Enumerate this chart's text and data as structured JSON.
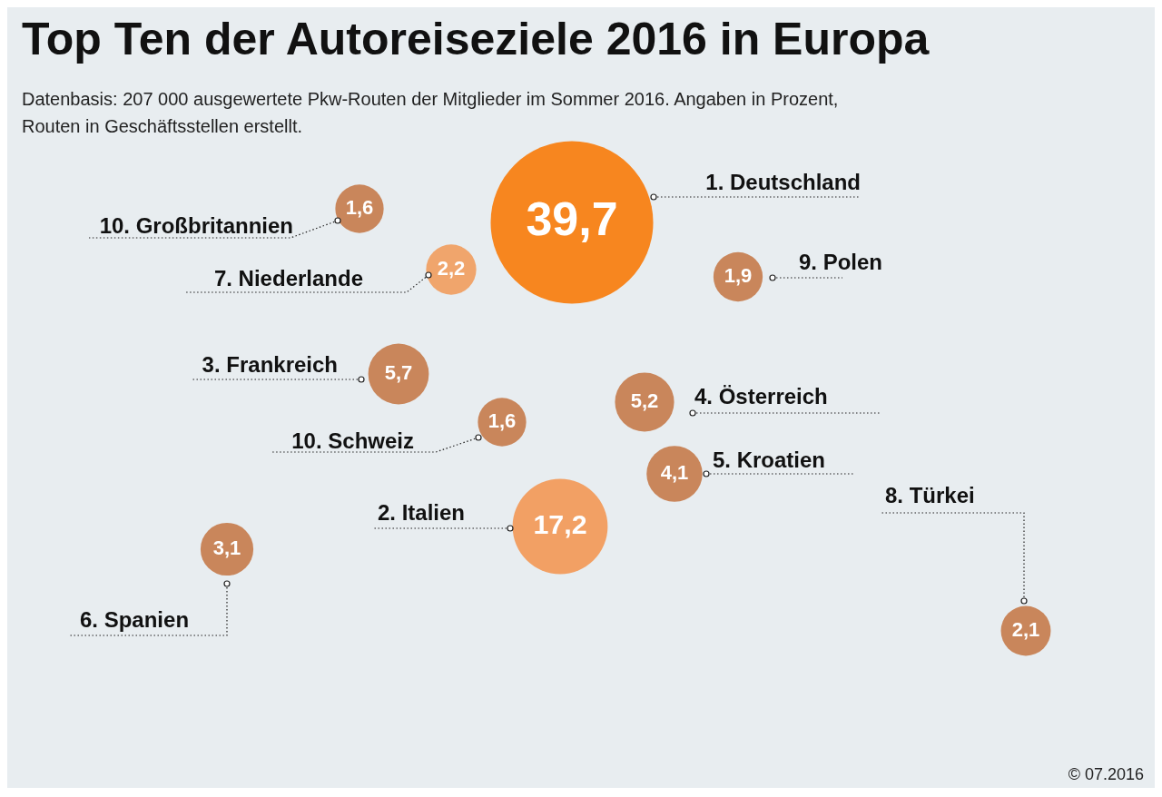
{
  "chart_data": {
    "type": "other",
    "title": "Top Ten der Autoreiseziele 2016 in Europa",
    "subtitle": "Datenbasis: 207 000 ausgewertete Pkw-Routen der Mitglieder im Sommer 2016. Angaben in Prozent, Routen in Geschäftsstellen erstellt.",
    "categories": [
      "1. Deutschland",
      "2. Italien",
      "3. Frankreich",
      "4. Österreich",
      "5. Kroatien",
      "6. Spanien",
      "7. Niederlande",
      "8. Türkei",
      "9. Polen",
      "10. Großbritannien",
      "10. Schweiz"
    ],
    "values": [
      39.7,
      17.2,
      5.7,
      5.2,
      4.1,
      3.1,
      2.2,
      2.1,
      1.9,
      1.6,
      1.6
    ],
    "colors": [
      "#f7861f",
      "#f2a064",
      "#c9865b",
      "#c9865b",
      "#c9865b",
      "#c9865b",
      "#f0a56c",
      "#c9865b",
      "#c9865b",
      "#c9865b",
      "#c9865b"
    ],
    "value_labels": [
      "39,7",
      "17,2",
      "5,7",
      "5,2",
      "4,1",
      "3,1",
      "2,2",
      "2,1",
      "1,9",
      "1,6",
      "1,6"
    ],
    "annotations": [
      "© 07.2016"
    ]
  }
}
